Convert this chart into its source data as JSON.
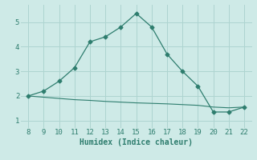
{
  "xlabel": "Humidex (Indice chaleur)",
  "line1_x": [
    8,
    9,
    10,
    11,
    12,
    13,
    14,
    15,
    16,
    17,
    18,
    19,
    20,
    21,
    22
  ],
  "line1_y": [
    2.0,
    2.2,
    2.6,
    3.15,
    4.2,
    4.4,
    4.8,
    5.35,
    4.8,
    3.7,
    3.0,
    2.4,
    1.35,
    1.35,
    1.55
  ],
  "line2_x": [
    8,
    9,
    10,
    11,
    12,
    13,
    14,
    15,
    16,
    17,
    18,
    19,
    20,
    21,
    22
  ],
  "line2_y": [
    2.0,
    1.95,
    1.9,
    1.85,
    1.82,
    1.78,
    1.75,
    1.72,
    1.7,
    1.68,
    1.65,
    1.62,
    1.55,
    1.52,
    1.55
  ],
  "line_color": "#2e7d6e",
  "bg_color": "#ceeae7",
  "grid_color": "#aed4d0",
  "tick_color": "#2e7d6e",
  "xlim": [
    7.5,
    22.5
  ],
  "ylim": [
    0.7,
    5.7
  ],
  "yticks": [
    1,
    2,
    3,
    4,
    5
  ],
  "xticks": [
    8,
    9,
    10,
    11,
    12,
    13,
    14,
    15,
    16,
    17,
    18,
    19,
    20,
    21,
    22
  ]
}
